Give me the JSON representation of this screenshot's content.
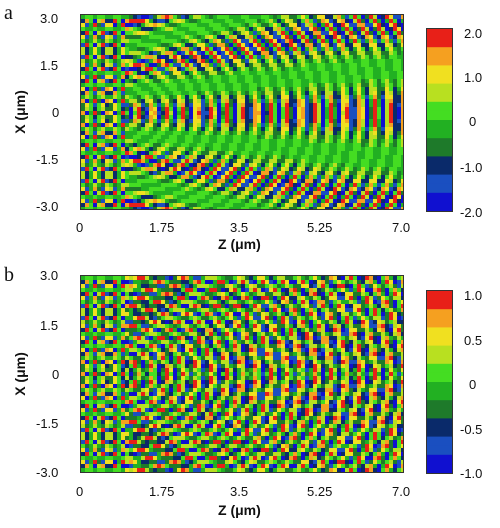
{
  "panels": [
    {
      "letter": "a",
      "xlabel": "X (μm)",
      "zlabel": "Z (μm)",
      "x_ticks": [
        "3.0",
        "1.5",
        "0",
        "-1.5",
        "-3.0"
      ],
      "z_ticks": [
        "0",
        "1.75",
        "3.5",
        "5.25",
        "7.0"
      ],
      "colorbar_ticks": [
        "2.0",
        "1.0",
        "0",
        "-1.0",
        "-2.0"
      ],
      "colorbar_range": [
        -2.0,
        2.0
      ],
      "wave_tilt": 0.0
    },
    {
      "letter": "b",
      "xlabel": "X (μm)",
      "zlabel": "Z (μm)",
      "x_ticks": [
        "3.0",
        "1.5",
        "0",
        "-1.5",
        "-3.0"
      ],
      "z_ticks": [
        "0",
        "1.75",
        "3.5",
        "5.25",
        "7.0"
      ],
      "colorbar_ticks": [
        "1.0",
        "0.5",
        "0",
        "-0.5",
        "-1.0"
      ],
      "colorbar_range": [
        -1.0,
        1.0
      ],
      "wave_tilt": 1.0
    }
  ],
  "colormap": [
    "#1010d0",
    "#1a4fc0",
    "#0a2a6a",
    "#1e7a2a",
    "#22b022",
    "#44dd22",
    "#b8e020",
    "#f0e020",
    "#f5a020",
    "#e82018"
  ],
  "chart_data": [
    {
      "type": "heatmap",
      "xlabel": "Z (μm)",
      "ylabel": "X (μm)",
      "xlim": [
        0,
        7.0
      ],
      "ylim": [
        -3.0,
        3.0
      ],
      "x_ticks": [
        0,
        1.75,
        3.5,
        5.25,
        7.0
      ],
      "y_ticks": [
        3.0,
        1.5,
        0,
        -1.5,
        -3.0
      ],
      "colorbar_ticks": [
        2.0,
        1.0,
        0,
        -1.0,
        -2.0
      ],
      "value_range": [
        -2.0,
        2.0
      ]
    },
    {
      "type": "heatmap",
      "xlabel": "Z (μm)",
      "ylabel": "X (μm)",
      "xlim": [
        0,
        7.0
      ],
      "ylim": [
        -3.0,
        3.0
      ],
      "x_ticks": [
        0,
        1.75,
        3.5,
        5.25,
        7.0
      ],
      "y_ticks": [
        3.0,
        1.5,
        0,
        -1.5,
        -3.0
      ],
      "colorbar_ticks": [
        1.0,
        0.5,
        0,
        -0.5,
        -1.0
      ],
      "value_range": [
        -1.0,
        1.0
      ]
    }
  ]
}
